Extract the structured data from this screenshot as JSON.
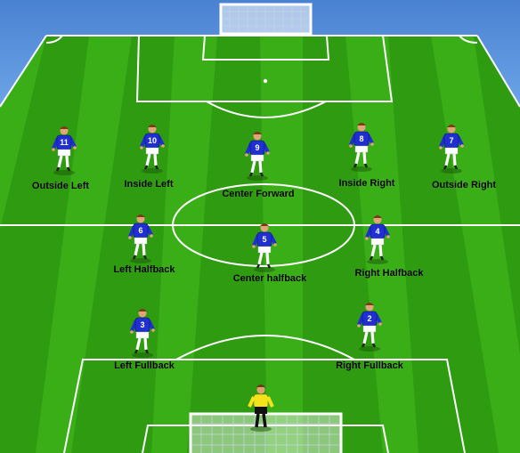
{
  "players": [
    {
      "number": "11",
      "position": "Outside Left"
    },
    {
      "number": "10",
      "position": "Inside Left"
    },
    {
      "number": "9",
      "position": "Center Forward"
    },
    {
      "number": "8",
      "position": "Inside Right"
    },
    {
      "number": "7",
      "position": "Outside Right"
    },
    {
      "number": "6",
      "position": "Left Halfback"
    },
    {
      "number": "5",
      "position": "Center halfback"
    },
    {
      "number": "4",
      "position": "Right Halfback"
    },
    {
      "number": "3",
      "position": "Left Fullback"
    },
    {
      "number": "2",
      "position": "Right Fullback"
    }
  ],
  "goalkeeper": {
    "kit_color": "#f2e31a"
  },
  "colors": {
    "grass_light": "#45c21d",
    "grass_dark": "#2f9e12",
    "jersey": "#1f2fd0",
    "shorts": "#ffffff",
    "lines": "#ffffff"
  }
}
